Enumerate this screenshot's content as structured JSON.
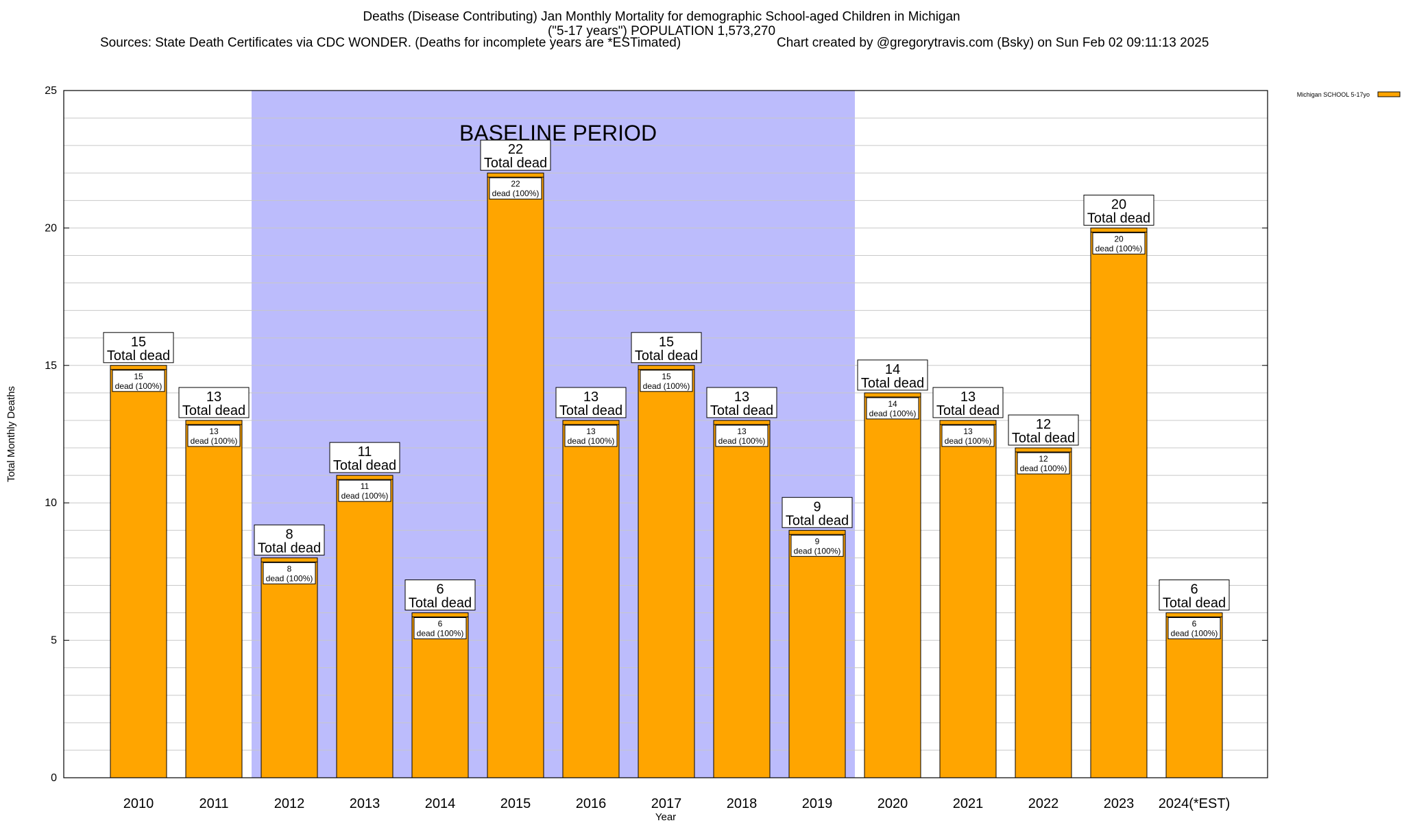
{
  "chart_data": {
    "type": "bar",
    "title_lines": [
      "Deaths (Disease Contributing) Jan Monthly Mortality for demographic School-aged Children in Michigan",
      "(\"5-17 years\") POPULATION 1,573,270"
    ],
    "sources": "Sources: State Death Certificates via CDC WONDER. (Deaths for incomplete years are *ESTimated)",
    "credit": "Chart created by @gregorytravis.com (Bsky) on Sun Feb 02 09:11:13 2025",
    "xlabel": "Year",
    "ylabel": "Total Monthly Deaths",
    "ylim": [
      0,
      25
    ],
    "yticks": [
      0,
      5,
      10,
      15,
      20,
      25
    ],
    "grid": true,
    "legend": {
      "label": "Michigan SCHOOL 5-17yo",
      "placement": "top-right"
    },
    "baseline": {
      "label": "BASELINE PERIOD",
      "from": "2012",
      "to": "2019"
    },
    "categories": [
      "2010",
      "2011",
      "2012",
      "2013",
      "2014",
      "2015",
      "2016",
      "2017",
      "2018",
      "2019",
      "2020",
      "2021",
      "2022",
      "2023",
      "2024(*EST)"
    ],
    "series": [
      {
        "name": "Michigan SCHOOL 5-17yo",
        "values": [
          15,
          13,
          8,
          11,
          6,
          22,
          13,
          15,
          13,
          9,
          14,
          13,
          12,
          20,
          6
        ]
      }
    ],
    "total_label": "Total dead",
    "inner_label": "dead (100%)",
    "colors": {
      "bar": "#ffa500",
      "baseline_fill": "#bcbcfc",
      "grid": "#c8c8c8",
      "axis": "#000000",
      "label_box": "#ffffff"
    }
  }
}
